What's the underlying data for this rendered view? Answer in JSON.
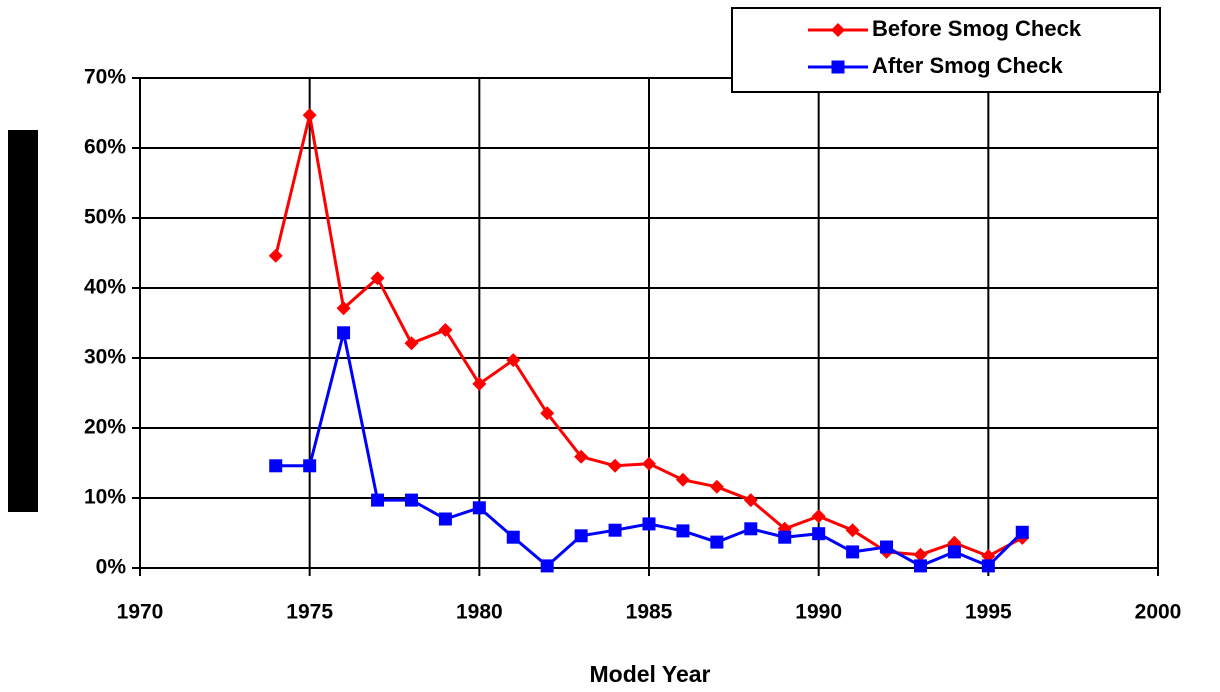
{
  "chart_data": {
    "type": "line",
    "x_label": "Model Year",
    "x": [
      1974,
      1975,
      1976,
      1977,
      1978,
      1979,
      1980,
      1981,
      1982,
      1983,
      1984,
      1985,
      1986,
      1987,
      1988,
      1989,
      1990,
      1991,
      1992,
      1993,
      1994,
      1995,
      1996
    ],
    "series": [
      {
        "name": "Before Smog Check",
        "color": "#ff0000",
        "marker": "diamond",
        "values": [
          44.6,
          64.7,
          37.1,
          41.4,
          32.1,
          34,
          26.3,
          29.7,
          22.1,
          15.9,
          14.6,
          14.9,
          12.6,
          11.6,
          9.7,
          5.6,
          7.4,
          5.4,
          2.3,
          1.9,
          3.6,
          1.7,
          4.3
        ]
      },
      {
        "name": "After Smog Check",
        "color": "#0000ff",
        "marker": "square",
        "values": [
          14.6,
          14.6,
          33.6,
          9.7,
          9.7,
          7,
          8.6,
          4.4,
          0.3,
          4.6,
          5.4,
          6.3,
          5.3,
          3.7,
          5.6,
          4.4,
          4.9,
          2.3,
          3,
          0.3,
          2.3,
          0.3,
          5.1
        ]
      }
    ],
    "xlim": [
      1970,
      2000
    ],
    "xticks": [
      1970,
      1975,
      1980,
      1985,
      1990,
      1995,
      2000
    ],
    "ylim": [
      0,
      70
    ],
    "yticks": [
      {
        "value": 0,
        "label": "0%"
      },
      {
        "value": 10,
        "label": "10%"
      },
      {
        "value": 20,
        "label": "20%"
      },
      {
        "value": 30,
        "label": "30%"
      },
      {
        "value": 40,
        "label": "40%"
      },
      {
        "value": 50,
        "label": "50%"
      },
      {
        "value": 60,
        "label": "60%"
      },
      {
        "value": 70,
        "label": "70%"
      }
    ],
    "grid": true,
    "legend": "upper right"
  }
}
